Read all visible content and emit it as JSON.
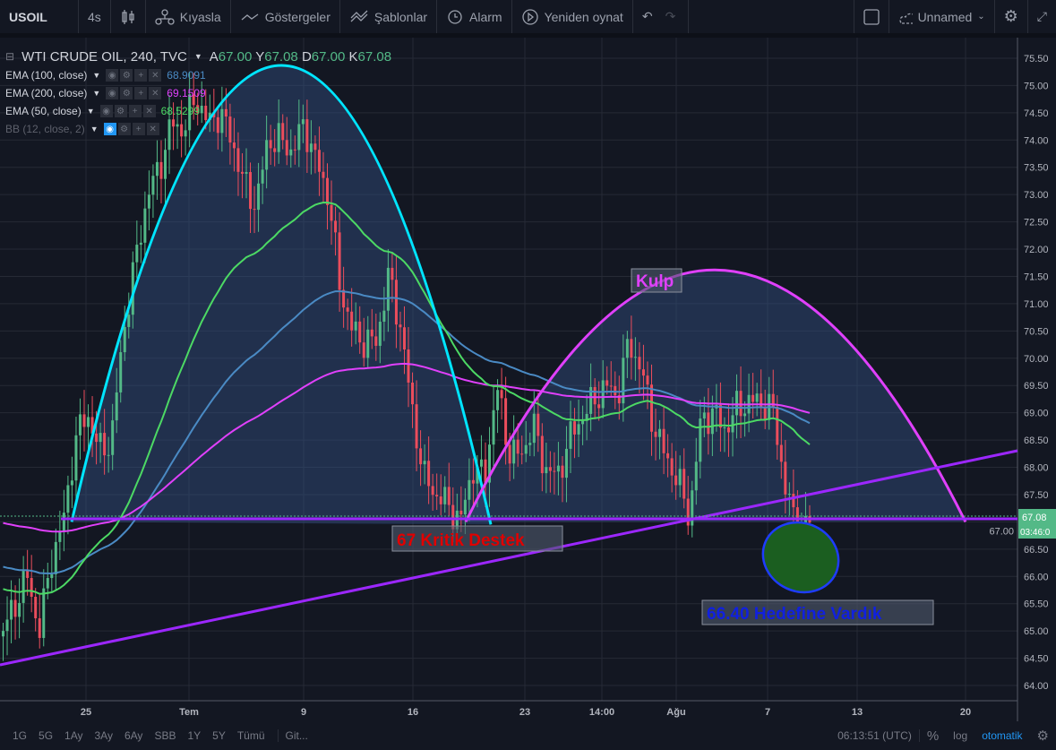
{
  "toolbar": {
    "symbol": "USOIL",
    "interval": "4s",
    "compare": "Kıyasla",
    "indicators": "Göstergeler",
    "templates": "Şablonlar",
    "alert": "Alarm",
    "replay": "Yeniden oynat",
    "layout_name": "Unnamed"
  },
  "legend": {
    "title": "WTI CRUDE OIL, 240, TVC",
    "open_label": "A",
    "open": "67.00",
    "high_label": "Y",
    "high": "67.08",
    "low_label": "D",
    "low": "67.00",
    "close_label": "K",
    "close": "67.08",
    "indicators": [
      {
        "name": "EMA (100, close)",
        "value": "68.9091",
        "color": "#4a8ac4"
      },
      {
        "name": "EMA (200, close)",
        "value": "69.1509",
        "color": "#e040fb"
      },
      {
        "name": "EMA (50, close)",
        "value": "68.5299",
        "color": "#4cd964"
      },
      {
        "name": "BB (12, close, 2)",
        "value": "",
        "color": "#5d606b"
      }
    ]
  },
  "annotations": {
    "handle": "Kulp",
    "support": "67 Kritik Destek",
    "target": "66.40 Hedefine Vardık"
  },
  "price_axis": {
    "ticks": [
      "75.50",
      "75.00",
      "74.50",
      "74.00",
      "73.50",
      "73.00",
      "72.50",
      "72.00",
      "71.50",
      "71.00",
      "70.50",
      "70.00",
      "69.50",
      "69.00",
      "68.50",
      "68.00",
      "67.50",
      "67.00",
      "66.50",
      "66.00",
      "65.50",
      "65.00",
      "64.50",
      "64.00"
    ],
    "last_price": "67.08",
    "countdown": "03:46:0"
  },
  "time_axis": {
    "ticks": [
      "25",
      "Tem",
      "9",
      "16",
      "23",
      "14:00",
      "Ağu",
      "7",
      "13",
      "20"
    ]
  },
  "bottom": {
    "ranges": [
      "1G",
      "5G",
      "1Ay",
      "3Ay",
      "6Ay",
      "SBB",
      "1Y",
      "5Y",
      "Tümü"
    ],
    "goto": "Git...",
    "time": "06:13:51 (UTC)",
    "percent": "%",
    "log": "log",
    "auto": "otomatik"
  },
  "colors": {
    "up": "#53b987",
    "down": "#eb4d5c",
    "cup": "#00e5ff",
    "handle": "#e040fb",
    "support": "#9c27ff",
    "target_fill": "#1b5e20"
  },
  "chart_data": {
    "type": "candlestick",
    "close_path": [
      65.0,
      65.5,
      66.0,
      65.0,
      66.3,
      67.0,
      68.5,
      69.0,
      68.3,
      68.5,
      70.5,
      71.8,
      73.0,
      73.5,
      74.3,
      74.2,
      74.8,
      74.3,
      74.5,
      74.0,
      73.2,
      72.8,
      74.0,
      74.0,
      73.8,
      74.3,
      73.6,
      73.0,
      71.3,
      70.5,
      70.3,
      70.3,
      71.5,
      70.6,
      69.0,
      67.8,
      67.5,
      67.3,
      67.0,
      68.0,
      67.8,
      69.5,
      68.3,
      68.2,
      68.8,
      68.0,
      67.8,
      68.5,
      68.9,
      69.2,
      69.5,
      69.3,
      70.3,
      69.8,
      68.8,
      68.2,
      67.8,
      67.1,
      68.9,
      69.0,
      68.7,
      69.1,
      69.2,
      69.2,
      69.0,
      67.6,
      66.8,
      67.0
    ],
    "ylim": [
      63.8,
      75.8
    ]
  }
}
